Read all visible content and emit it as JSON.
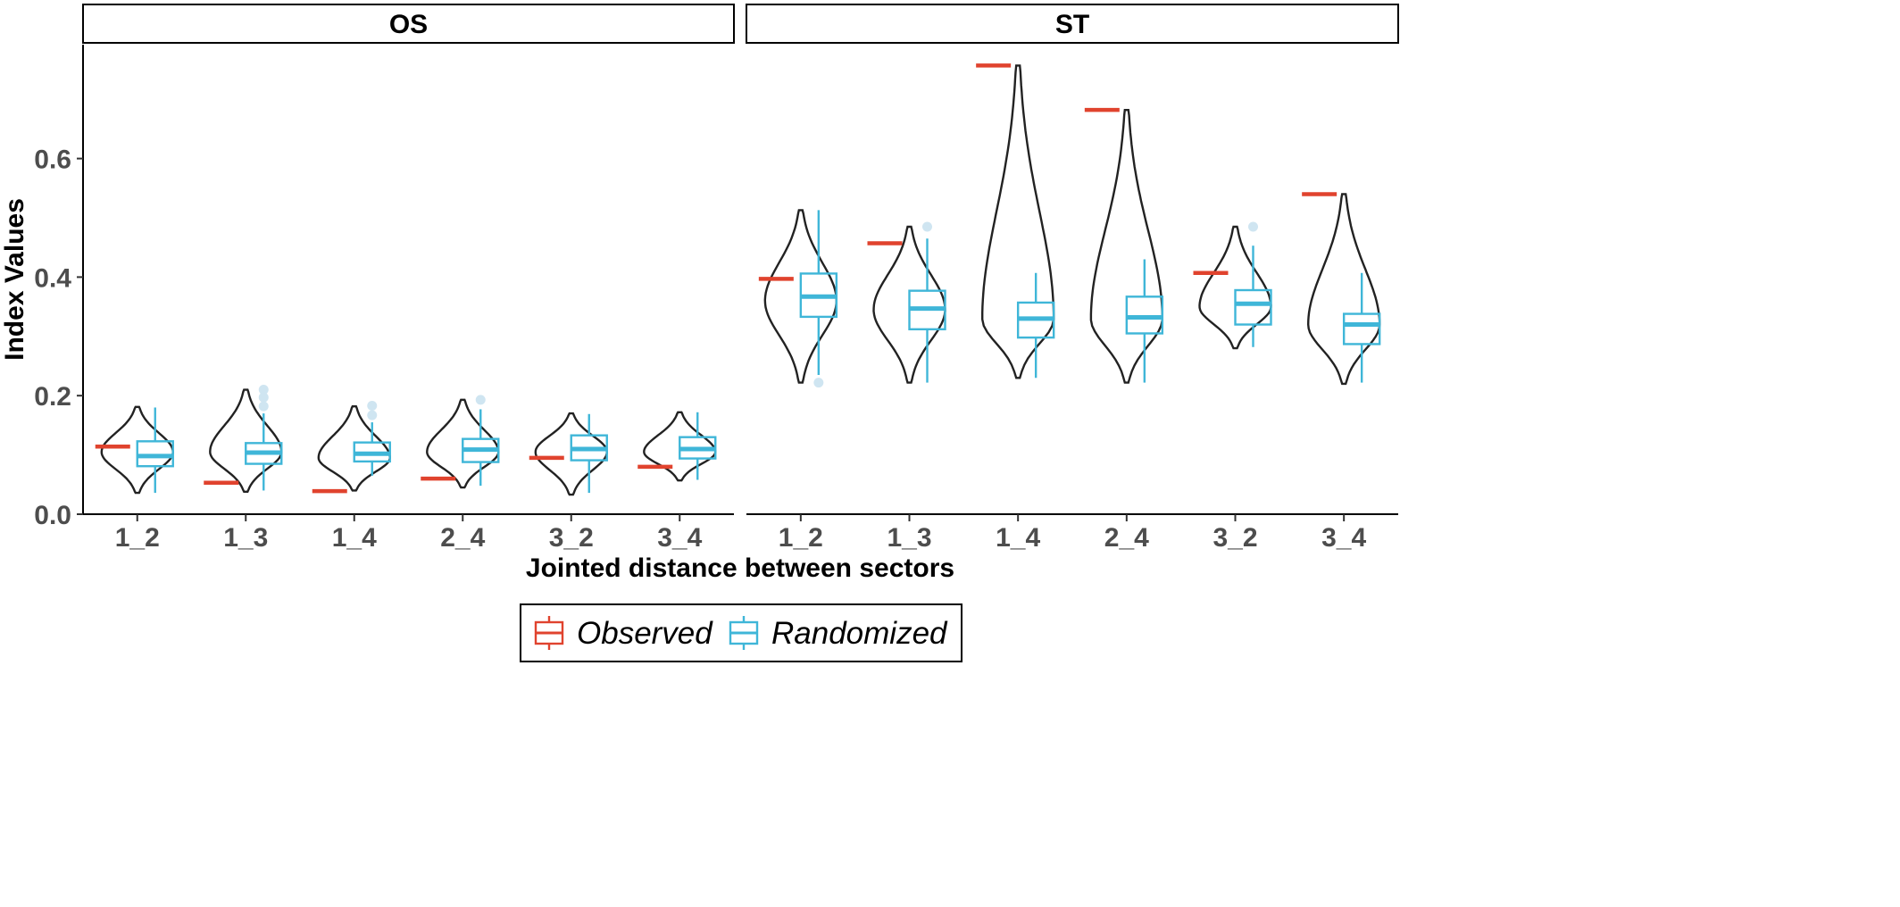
{
  "chart_data": {
    "type": "violin-box",
    "ylabel": "Index Values",
    "xlabel": "Jointed distance between sectors",
    "ylim": [
      0,
      0.8
    ],
    "yticks": [
      0.0,
      0.2,
      0.4,
      0.6
    ],
    "ytick_labels": [
      "0.0",
      "0.2",
      "0.4",
      "0.6"
    ],
    "categories": [
      "1_2",
      "1_3",
      "1_4",
      "2_4",
      "3_2",
      "3_4"
    ],
    "legend": {
      "placement": "bottom",
      "items": [
        {
          "label": "Observed",
          "color": "#e0432e"
        },
        {
          "label": "Randomized",
          "color": "#3fb6d8"
        }
      ]
    },
    "colors": {
      "observed": "#e0432e",
      "randomized": "#3fb6d8",
      "outlier": "#cfe5f1",
      "violin": "#222222"
    },
    "panels": [
      {
        "title": "OS",
        "observed": [
          0.114,
          0.053,
          0.039,
          0.06,
          0.095,
          0.08
        ],
        "randomized": [
          {
            "q1": 0.081,
            "median": 0.098,
            "q3": 0.123,
            "lo": 0.036,
            "hi": 0.18,
            "outliers": []
          },
          {
            "q1": 0.085,
            "median": 0.104,
            "q3": 0.12,
            "lo": 0.04,
            "hi": 0.17,
            "outliers": [
              0.182,
              0.197,
              0.21
            ]
          },
          {
            "q1": 0.089,
            "median": 0.102,
            "q3": 0.121,
            "lo": 0.065,
            "hi": 0.155,
            "outliers": [
              0.167,
              0.183
            ]
          },
          {
            "q1": 0.088,
            "median": 0.109,
            "q3": 0.127,
            "lo": 0.048,
            "hi": 0.177,
            "outliers": [
              0.193
            ]
          },
          {
            "q1": 0.091,
            "median": 0.11,
            "q3": 0.133,
            "lo": 0.036,
            "hi": 0.169,
            "outliers": []
          },
          {
            "q1": 0.094,
            "median": 0.11,
            "q3": 0.13,
            "lo": 0.058,
            "hi": 0.172,
            "outliers": []
          }
        ],
        "violin": [
          {
            "min": 0.036,
            "max": 0.181,
            "mode": 0.105
          },
          {
            "min": 0.038,
            "max": 0.21,
            "mode": 0.105
          },
          {
            "min": 0.04,
            "max": 0.182,
            "mode": 0.095
          },
          {
            "min": 0.045,
            "max": 0.193,
            "mode": 0.105
          },
          {
            "min": 0.033,
            "max": 0.17,
            "mode": 0.105
          },
          {
            "min": 0.057,
            "max": 0.172,
            "mode": 0.105
          }
        ]
      },
      {
        "title": "ST",
        "observed": [
          0.397,
          0.457,
          0.757,
          0.682,
          0.407,
          0.54
        ],
        "randomized": [
          {
            "q1": 0.333,
            "median": 0.367,
            "q3": 0.406,
            "lo": 0.235,
            "hi": 0.513,
            "outliers": [
              0.222
            ]
          },
          {
            "q1": 0.312,
            "median": 0.347,
            "q3": 0.377,
            "lo": 0.222,
            "hi": 0.465,
            "outliers": [
              0.485
            ]
          },
          {
            "q1": 0.298,
            "median": 0.33,
            "q3": 0.357,
            "lo": 0.23,
            "hi": 0.407,
            "outliers": []
          },
          {
            "q1": 0.305,
            "median": 0.332,
            "q3": 0.367,
            "lo": 0.222,
            "hi": 0.43,
            "outliers": []
          },
          {
            "q1": 0.32,
            "median": 0.355,
            "q3": 0.378,
            "lo": 0.282,
            "hi": 0.453,
            "outliers": [
              0.485
            ]
          },
          {
            "q1": 0.287,
            "median": 0.32,
            "q3": 0.338,
            "lo": 0.222,
            "hi": 0.407,
            "outliers": []
          }
        ],
        "violin": [
          {
            "min": 0.222,
            "max": 0.513,
            "mode": 0.36
          },
          {
            "min": 0.222,
            "max": 0.485,
            "mode": 0.345
          },
          {
            "min": 0.23,
            "max": 0.757,
            "mode": 0.33
          },
          {
            "min": 0.222,
            "max": 0.682,
            "mode": 0.33
          },
          {
            "min": 0.28,
            "max": 0.485,
            "mode": 0.35
          },
          {
            "min": 0.22,
            "max": 0.54,
            "mode": 0.32
          }
        ]
      }
    ]
  }
}
